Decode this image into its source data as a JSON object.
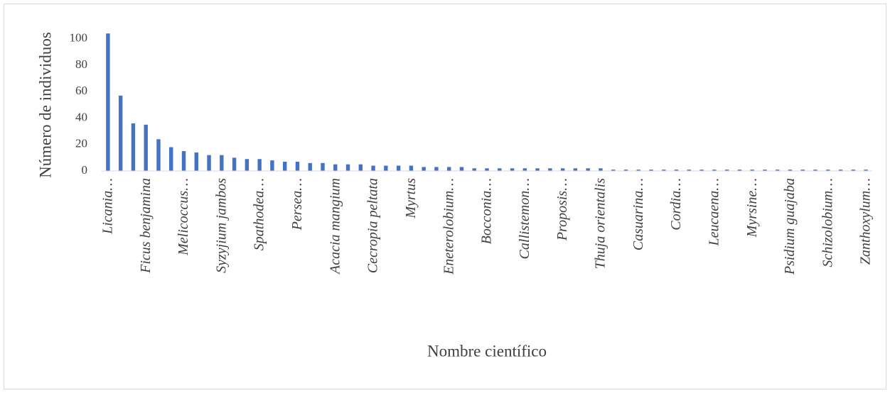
{
  "chart_data": {
    "type": "bar",
    "x_label": "Nombre científico",
    "y_label": "Número de individuos",
    "categories": [
      "Licania…",
      null,
      null,
      "Ficus benjamina",
      null,
      null,
      "Melicoccus…",
      null,
      null,
      "Syzyjium jambos",
      null,
      null,
      "Spathodea…",
      null,
      null,
      "Persea…",
      null,
      null,
      "Acacia mangium",
      null,
      null,
      "Cecropia peltata",
      null,
      null,
      "Myrtus",
      null,
      null,
      "Eneterolobium…",
      null,
      null,
      "Bocconia…",
      null,
      null,
      "Callistemon…",
      null,
      null,
      "Proposis…",
      null,
      null,
      "Thuja orientalis",
      null,
      null,
      "Casuarina…",
      null,
      null,
      "Cordia…",
      null,
      null,
      "Leucaena…",
      null,
      null,
      "Myrsine…",
      null,
      null,
      "Psidium guajaba",
      null,
      null,
      "Schizolobium…",
      null,
      null,
      "Zanthoxylum…"
    ],
    "values": [
      104,
      57,
      36,
      35,
      24,
      18,
      15,
      14,
      12,
      12,
      10,
      9,
      9,
      8,
      7,
      7,
      6,
      6,
      5,
      5,
      5,
      4,
      4,
      4,
      4,
      3,
      3,
      3,
      3,
      2,
      2,
      2,
      2,
      2,
      2,
      2,
      2,
      2,
      2,
      2,
      1,
      1,
      1,
      1,
      1,
      1,
      1,
      1,
      1,
      1,
      1,
      1,
      1,
      1,
      1,
      1,
      1,
      1,
      1,
      1,
      1
    ],
    "color": "#4472c4",
    "ylim": [
      0,
      110
    ],
    "yticks": [
      0,
      20,
      40,
      60,
      80,
      100
    ],
    "grid": false
  }
}
